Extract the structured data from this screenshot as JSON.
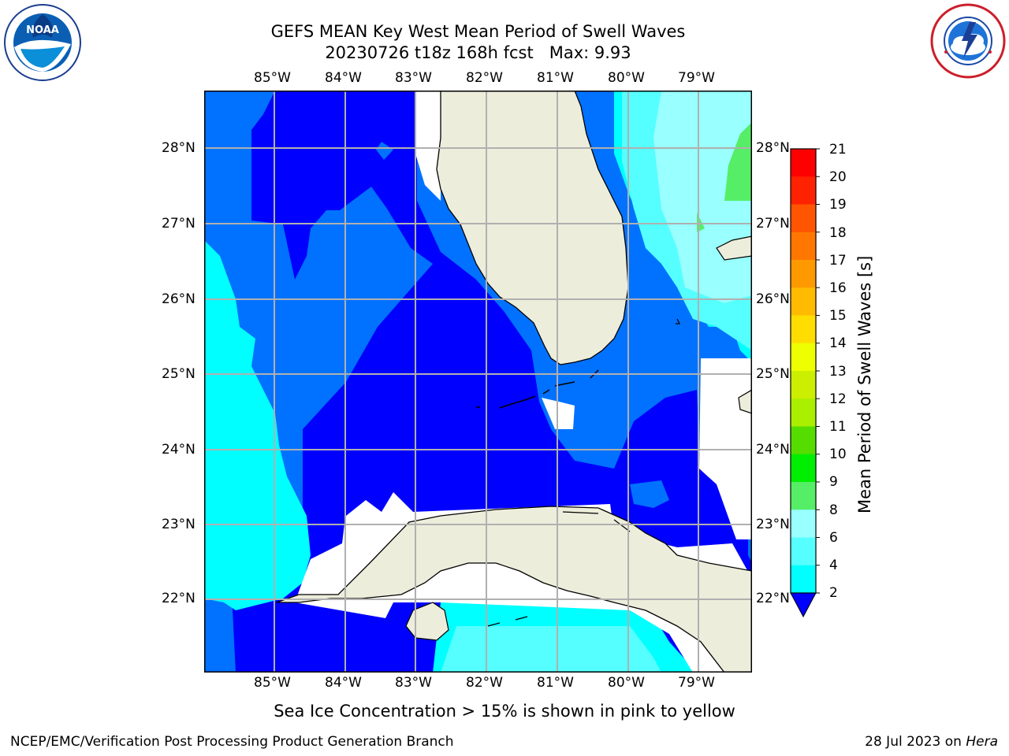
{
  "header": {
    "title_line1": "GEFS MEAN Key West Mean Period of Swell Waves",
    "title_line2": "20230726 t18z 168h fcst   Max: 9.93"
  },
  "logos": {
    "left": {
      "icon": "noaa-logo-icon",
      "text": "NOAA",
      "ring_text": "NATIONAL OCEANIC AND ATMOSPHERIC ADMINISTRATION · U.S. DEPARTMENT OF COMMERCE"
    },
    "right": {
      "icon": "nws-logo-icon",
      "ring_text": "NATIONAL WEATHER SERVICE"
    }
  },
  "map": {
    "longitude_labels": [
      "85°W",
      "84°W",
      "83°W",
      "82°W",
      "81°W",
      "80°W",
      "79°W"
    ],
    "latitude_labels": [
      "28°N",
      "27°N",
      "26°N",
      "25°N",
      "24°N",
      "23°N",
      "22°N"
    ],
    "land_color": "#ededdc",
    "gridline_color": "#b0b0b0",
    "colors": {
      "band_2_4": "#0072ff",
      "band_below_2": "#0000ff",
      "band_4_6": "#00ffff",
      "band_6_8": "#55ffff",
      "band_8_9": "#99ffff",
      "band_9_10": "#55ee66",
      "undefined": "#ffffff"
    }
  },
  "colorbar": {
    "title": "Mean Period of Swell Waves [s]",
    "ticks": [
      "21",
      "20",
      "19",
      "18",
      "17",
      "16",
      "15",
      "14",
      "13",
      "12",
      "11",
      "10",
      "9",
      "8",
      "6",
      "4",
      "2"
    ],
    "colors": [
      "#ff0000",
      "#ff2200",
      "#ff5500",
      "#ff7700",
      "#ff9900",
      "#ffbb00",
      "#ffdd00",
      "#eeff00",
      "#ccee00",
      "#aaee00",
      "#55dd00",
      "#00ee00",
      "#55ee66",
      "#99ffff",
      "#55ffff",
      "#00ffff",
      "#0072ff",
      "#0000ff"
    ]
  },
  "caption": "Sea Ice Concentration > 15% is shown in pink to yellow",
  "footer": {
    "left": "NCEP/EMC/Verification Post Processing Product Generation Branch",
    "right_date": "28 Jul 2023 on ",
    "right_host": "Hera"
  }
}
